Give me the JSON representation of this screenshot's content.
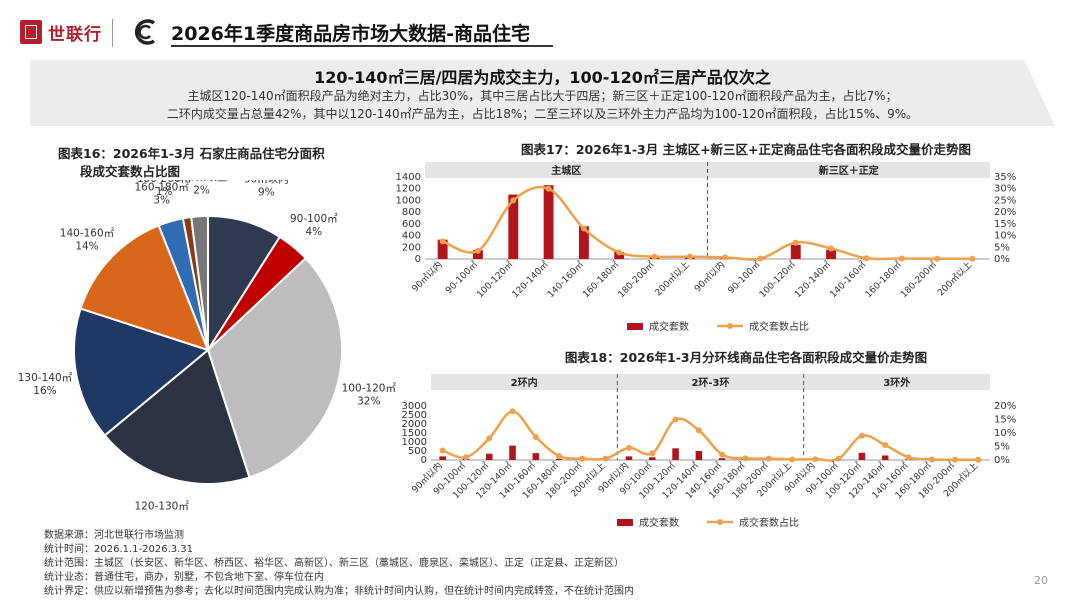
{
  "header": {
    "brand": "世联行",
    "title": "2026年1季度商品房市场大数据-商品住宅"
  },
  "summary": {
    "headline": "120-140㎡三居/四居为成交主力，100-120㎡三居产品仅次之",
    "line1": "主城区120-140㎡面积段产品为绝对主力，占比30%，其中三居占比大于四居；新三区＋正定100-120㎡面积段产品为主，占比7%；",
    "line2": "二环内成交量占总量42%，其中以120-140㎡产品为主，占比18%；二至三环以及三环外主力产品均为100-120㎡面积段，占比15%、9%。"
  },
  "colors": {
    "brand": "#b3202a",
    "bar": "#b3131b",
    "line": "#f0a04b",
    "band": "#e4e4e4"
  },
  "chart_data": [
    {
      "type": "pie",
      "title_line1": "图表16：2026年1-3月 石家庄商品住宅分面积",
      "title_line2": "段成交套数占比图",
      "categories": [
        "90㎡以内",
        "90-100㎡",
        "100-120㎡",
        "120-130㎡",
        "130-140㎡",
        "140-160㎡",
        "160-180㎡",
        "180-200㎡",
        "200㎡以上"
      ],
      "values": [
        9,
        4,
        32,
        19,
        16,
        14,
        3,
        1,
        2
      ],
      "labels": [
        "9%",
        "4%",
        "32%",
        "19%",
        "16%",
        "14%",
        "3%",
        "1%",
        "2%"
      ],
      "slice_colors": [
        "#2d3a4f",
        "#c00000",
        "#bdbdbd",
        "#2b3342",
        "#1f3864",
        "#d8661b",
        "#2f6db5",
        "#8a3b12",
        "#777777"
      ]
    },
    {
      "type": "bar+line",
      "title": "图表17：2026年1-3月 主城区+新三区+正定商品住宅各面积段成交量价走势图",
      "groups": [
        "主城区",
        "新三区＋正定"
      ],
      "categories": [
        "90㎡以内",
        "90-100㎡",
        "100-120㎡",
        "120-140㎡",
        "140-160㎡",
        "160-180㎡",
        "180-200㎡",
        "200㎡以上",
        "90㎡以内",
        "90-100㎡",
        "100-120㎡",
        "120-140㎡",
        "140-160㎡",
        "160-180㎡",
        "180-200㎡",
        "200㎡以上"
      ],
      "group_sizes": [
        8,
        8
      ],
      "series": [
        {
          "name": "成交套数",
          "type": "bar",
          "axis": "left",
          "values": [
            330,
            150,
            1100,
            1260,
            560,
            120,
            40,
            50,
            30,
            10,
            240,
            160,
            20,
            10,
            5,
            5
          ]
        },
        {
          "name": "成交套数占比",
          "type": "line",
          "axis": "right",
          "values": [
            7.5,
            3.5,
            25.0,
            30.0,
            13.0,
            2.8,
            1.0,
            1.0,
            0.7,
            0.2,
            7.0,
            4.5,
            0.3,
            0.2,
            0.1,
            0.1
          ]
        }
      ],
      "y_left": {
        "ticks": [
          "0",
          "200",
          "400",
          "600",
          "800",
          "1000",
          "1200",
          "1400"
        ],
        "max": 1400
      },
      "y_right": {
        "ticks": [
          "0%",
          "5%",
          "10%",
          "15%",
          "20%",
          "25%",
          "30%",
          "35%"
        ],
        "max": 35
      }
    },
    {
      "type": "bar+line",
      "title": "图表18：2026年1-3月分环线商品住宅各面积段成交量价走势图",
      "groups": [
        "2环内",
        "2环-3环",
        "3环外"
      ],
      "categories": [
        "90㎡以内",
        "90-100㎡",
        "100-120㎡",
        "120-140㎡",
        "140-160㎡",
        "160-180㎡",
        "180-200㎡",
        "200㎡以上",
        "90㎡以内",
        "90-100㎡",
        "100-120㎡",
        "120-140㎡",
        "140-160㎡",
        "160-180㎡",
        "180-200㎡",
        "200㎡以上",
        "90㎡以内",
        "90-100㎡",
        "100-120㎡",
        "120-140㎡",
        "140-160㎡",
        "160-180㎡",
        "180-200㎡",
        "200㎡以上"
      ],
      "group_sizes": [
        8,
        8,
        8
      ],
      "series": [
        {
          "name": "成交套数",
          "type": "bar",
          "axis": "left",
          "values": [
            200,
            60,
            350,
            800,
            380,
            60,
            30,
            30,
            200,
            150,
            650,
            500,
            100,
            30,
            20,
            10,
            20,
            20,
            400,
            250,
            40,
            10,
            10,
            10
          ]
        },
        {
          "name": "成交套数占比",
          "type": "line",
          "axis": "right",
          "values": [
            3.5,
            1.0,
            8.0,
            18.0,
            8.5,
            1.5,
            0.5,
            0.5,
            4.5,
            2.5,
            15.0,
            11.0,
            2.0,
            0.6,
            0.5,
            0.2,
            0.3,
            0.5,
            9.0,
            5.5,
            1.0,
            0.2,
            0.1,
            0.1
          ]
        }
      ],
      "y_left": {
        "ticks": [
          "0",
          "500",
          "1000",
          "1500",
          "2000",
          "2500",
          "3000"
        ],
        "max": 3000
      },
      "y_right": {
        "ticks": [
          "0%",
          "5%",
          "10%",
          "15%",
          "20%"
        ],
        "max": 20
      }
    }
  ],
  "footer": {
    "source": "数据来源：河北世联行市场监测",
    "period": "统计时间：2026.1.1-2026.3.31",
    "scope": "统计范围：主城区（长安区、新华区、桥西区、裕华区、高新区）、新三区（藁城区、鹿泉区、栾城区）、正定（正定县、正定新区）",
    "business": "统计业态：普通住宅，商办，别墅，不包含地下室、停车位在内",
    "boundary": "统计界定：供应以新增预售为参考；去化以时间范围内完成认购为准；非统计时间内认购，但在统计时间内完成转签，不在统计范围内",
    "page": "20"
  }
}
